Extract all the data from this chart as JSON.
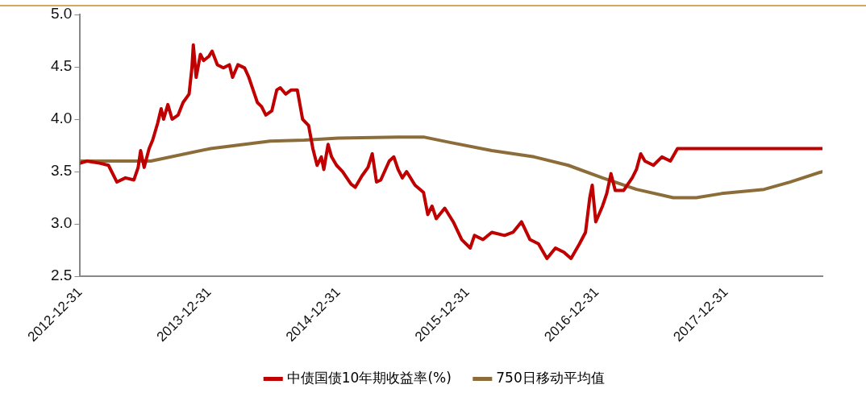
{
  "chart_data": {
    "type": "line",
    "legend": "bottom",
    "grid": false,
    "marker": "none",
    "line_style": "solid",
    "xlim": [
      "2012-12-31",
      "2018-09-30"
    ],
    "xticks": [
      "2012-12-31",
      "2013-12-31",
      "2014-12-31",
      "2015-12-31",
      "2016-12-31",
      "2017-12-31"
    ],
    "ylim": [
      2.5,
      5.0
    ],
    "yticks": [
      {
        "value": 2.5,
        "label": "2.5"
      },
      {
        "value": 3,
        "label": "3.0"
      },
      {
        "value": 3.5,
        "label": "3.5"
      },
      {
        "value": 4,
        "label": "4.0"
      },
      {
        "value": 4.5,
        "label": "4.5"
      },
      {
        "value": 5,
        "label": "5.0"
      }
    ],
    "series": [
      {
        "name": "中债国债10年期收益率(%)",
        "color": "#c00000",
        "x": [
          "2012-12-31",
          "2013-01-19",
          "2013-02-24",
          "2013-03-21",
          "2013-04-14",
          "2013-05-08",
          "2013-06-01",
          "2013-06-13",
          "2013-06-20",
          "2013-06-30",
          "2013-07-14",
          "2013-07-24",
          "2013-08-07",
          "2013-08-17",
          "2013-08-24",
          "2013-09-05",
          "2013-09-17",
          "2013-10-04",
          "2013-10-18",
          "2013-11-04",
          "2013-11-12",
          "2013-11-16",
          "2013-11-24",
          "2013-12-06",
          "2013-12-15",
          "2013-12-30",
          "2014-01-08",
          "2014-01-23",
          "2014-02-09",
          "2014-02-26",
          "2014-03-07",
          "2014-03-22",
          "2014-04-10",
          "2014-04-22",
          "2014-05-04",
          "2014-05-16",
          "2014-05-28",
          "2014-06-09",
          "2014-06-26",
          "2014-07-10",
          "2014-07-20",
          "2014-08-04",
          "2014-08-20",
          "2014-09-06",
          "2014-09-21",
          "2014-10-08",
          "2014-10-20",
          "2014-11-01",
          "2014-11-13",
          "2014-11-20",
          "2014-12-02",
          "2014-12-12",
          "2014-12-26",
          "2015-01-12",
          "2015-02-05",
          "2015-02-17",
          "2015-03-08",
          "2015-03-25",
          "2015-04-06",
          "2015-04-18",
          "2015-04-30",
          "2015-05-24",
          "2015-06-06",
          "2015-06-18",
          "2015-06-30",
          "2015-07-12",
          "2015-08-05",
          "2015-08-29",
          "2015-09-10",
          "2015-09-22",
          "2015-10-04",
          "2015-10-28",
          "2015-11-21",
          "2015-12-15",
          "2016-01-08",
          "2016-01-20",
          "2016-02-13",
          "2016-03-09",
          "2016-04-14",
          "2016-05-08",
          "2016-06-01",
          "2016-06-25",
          "2016-07-19",
          "2016-08-12",
          "2016-09-05",
          "2016-09-29",
          "2016-10-19",
          "2016-11-12",
          "2016-11-29",
          "2016-12-11",
          "2016-12-18",
          "2016-12-28",
          "2017-01-16",
          "2017-01-28",
          "2017-02-09",
          "2017-02-21",
          "2017-03-17",
          "2017-04-10",
          "2017-04-22",
          "2017-05-04",
          "2017-05-16",
          "2017-06-09",
          "2017-07-03",
          "2017-07-27",
          "2017-08-16",
          "2018-09-30"
        ],
        "values": [
          3.58,
          3.6,
          3.58,
          3.56,
          3.4,
          3.44,
          3.42,
          3.54,
          3.7,
          3.54,
          3.72,
          3.8,
          3.96,
          4.1,
          4.0,
          4.14,
          4.0,
          4.04,
          4.16,
          4.24,
          4.49,
          4.71,
          4.4,
          4.62,
          4.56,
          4.6,
          4.65,
          4.52,
          4.49,
          4.52,
          4.4,
          4.52,
          4.49,
          4.4,
          4.28,
          4.16,
          4.12,
          4.04,
          4.08,
          4.28,
          4.3,
          4.24,
          4.28,
          4.28,
          4.0,
          3.94,
          3.72,
          3.56,
          3.64,
          3.52,
          3.76,
          3.64,
          3.56,
          3.5,
          3.38,
          3.35,
          3.46,
          3.54,
          3.67,
          3.4,
          3.42,
          3.6,
          3.64,
          3.52,
          3.44,
          3.5,
          3.37,
          3.3,
          3.09,
          3.17,
          3.05,
          3.15,
          3.02,
          2.85,
          2.77,
          2.89,
          2.85,
          2.92,
          2.89,
          2.92,
          3.02,
          2.85,
          2.81,
          2.67,
          2.77,
          2.73,
          2.67,
          2.81,
          2.92,
          3.25,
          3.37,
          3.02,
          3.17,
          3.29,
          3.48,
          3.32,
          3.32,
          3.44,
          3.52,
          3.67,
          3.6,
          3.56,
          3.64,
          3.6,
          3.72,
          3.72
        ]
      },
      {
        "name": "750日移动平均值",
        "color": "#8c6d3a",
        "x": [
          "2012-12-31",
          "2013-07-19",
          "2014-01-04",
          "2014-06-21",
          "2014-09-26",
          "2014-12-31",
          "2015-06-18",
          "2015-08-29",
          "2015-11-09",
          "2016-03-09",
          "2016-07-07",
          "2016-10-11",
          "2017-01-16",
          "2017-04-22",
          "2017-08-04",
          "2017-10-08",
          "2017-12-19",
          "2018-04-18",
          "2018-06-30",
          "2018-09-30"
        ],
        "values": [
          3.6,
          3.6,
          3.72,
          3.79,
          3.8,
          3.82,
          3.83,
          3.83,
          3.78,
          3.7,
          3.64,
          3.56,
          3.44,
          3.33,
          3.25,
          3.25,
          3.29,
          3.33,
          3.4,
          3.5
        ]
      }
    ]
  }
}
